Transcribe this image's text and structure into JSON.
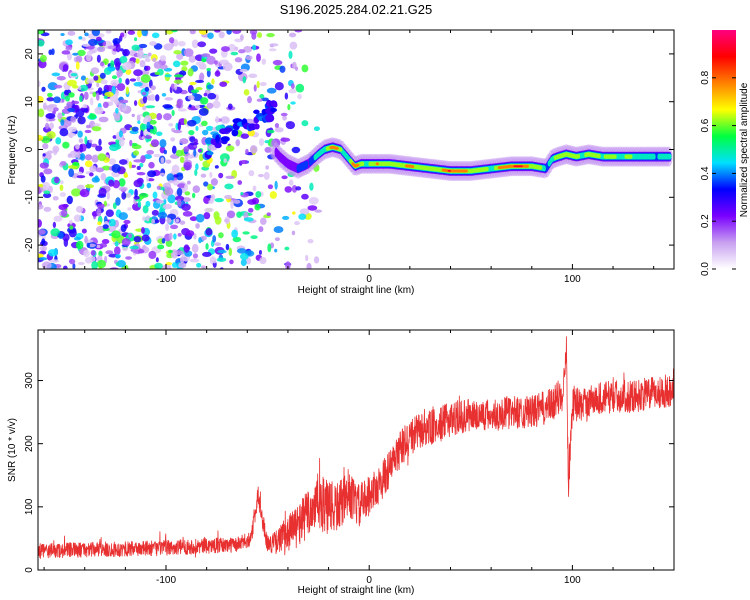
{
  "title": "S196.2025.284.02.21.G25",
  "chart_data": [
    {
      "type": "heatmap",
      "title": "S196.2025.284.02.21.G25",
      "xlabel": "Height of straight line (km)",
      "ylabel": "Frequency (Hz)",
      "xlim": [
        -163,
        150
      ],
      "ylim": [
        -25,
        25
      ],
      "x_ticks": [
        -100,
        0,
        100
      ],
      "y_ticks": [
        -20,
        -10,
        0,
        10,
        20
      ],
      "colorbar": {
        "label": "Normalized spectral amplitude",
        "range": [
          0,
          1
        ],
        "ticks": [
          0.0,
          0.2,
          0.4,
          0.6,
          0.8
        ],
        "colors": [
          "#ffffff",
          "#c8a0f0",
          "#7a00ff",
          "#0000ff",
          "#00e0ff",
          "#00ff40",
          "#ffff00",
          "#ff8000",
          "#ff0000",
          "#ff0080"
        ]
      },
      "ridge": {
        "x": [
          -47,
          -44,
          -40,
          -35,
          -30,
          -25,
          -22,
          -18,
          -14,
          -10,
          -7,
          -4,
          0,
          5,
          10,
          20,
          30,
          40,
          50,
          60,
          70,
          80,
          87,
          90,
          93,
          97,
          102,
          108,
          115,
          125,
          135,
          148
        ],
        "y": [
          0,
          -1.5,
          -3,
          -4,
          -3,
          -1,
          0,
          0.5,
          0,
          -2,
          -3.5,
          -3,
          -3,
          -3,
          -3,
          -3.5,
          -4,
          -4.5,
          -4.5,
          -4,
          -3.5,
          -3.5,
          -4,
          -2,
          -1.5,
          -1,
          -1.5,
          -1,
          -1.5,
          -1.5,
          -1.5,
          -1.5
        ],
        "amplitude": [
          0.25,
          0.3,
          0.3,
          0.35,
          0.4,
          0.55,
          0.6,
          0.9,
          0.6,
          0.55,
          0.85,
          0.7,
          0.6,
          0.8,
          0.7,
          0.8,
          0.6,
          0.9,
          0.7,
          0.6,
          0.95,
          0.8,
          0.5,
          0.55,
          0.6,
          0.8,
          0.6,
          0.7,
          0.65,
          0.6,
          0.55,
          0.5
        ]
      },
      "noise_region_x": [
        -163,
        -35
      ],
      "noise_streak": {
        "x": [
          -80,
          -65,
          -52,
          -46
        ],
        "y": [
          0,
          5,
          7,
          9
        ]
      }
    },
    {
      "type": "line",
      "xlabel": "Height of straight line (km)",
      "ylabel": "SNR (10 * v/v)",
      "xlim": [
        -163,
        150
      ],
      "ylim": [
        0,
        380
      ],
      "x_ticks": [
        -100,
        0,
        100
      ],
      "y_ticks": [
        0,
        100,
        200,
        300
      ],
      "series": [
        {
          "name": "SNR",
          "color": "#e83030",
          "x": [
            -163,
            -140,
            -120,
            -100,
            -80,
            -65,
            -58,
            -55,
            -50,
            -45,
            -40,
            -35,
            -30,
            -25,
            -20,
            -15,
            -10,
            -5,
            0,
            5,
            10,
            15,
            20,
            25,
            30,
            35,
            40,
            50,
            60,
            70,
            80,
            90,
            95,
            97,
            98,
            100,
            105,
            110,
            120,
            130,
            140,
            150
          ],
          "y": [
            30,
            32,
            33,
            35,
            38,
            40,
            50,
            120,
            40,
            45,
            60,
            70,
            90,
            110,
            95,
            100,
            120,
            100,
            120,
            135,
            160,
            190,
            210,
            220,
            225,
            230,
            240,
            245,
            245,
            250,
            250,
            260,
            280,
            360,
            130,
            265,
            260,
            270,
            275,
            275,
            280,
            285
          ],
          "noise": [
            12,
            12,
            12,
            12,
            12,
            12,
            12,
            20,
            12,
            20,
            30,
            35,
            40,
            45,
            45,
            40,
            35,
            35,
            30,
            30,
            30,
            30,
            30,
            28,
            28,
            28,
            28,
            26,
            26,
            26,
            26,
            28,
            30,
            30,
            30,
            28,
            26,
            26,
            26,
            26,
            26,
            26
          ]
        }
      ]
    }
  ]
}
